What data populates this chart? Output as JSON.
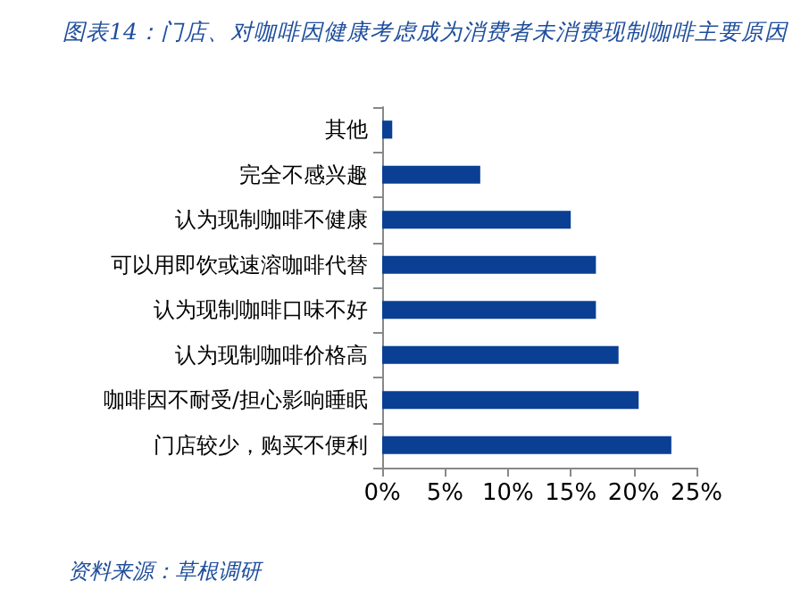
{
  "chart_data": {
    "type": "bar",
    "orientation": "horizontal",
    "title": "图表14：门店、对咖啡因健康考虑成为消费者未消费现制咖啡主要原因",
    "categories": [
      "其他",
      "完全不感兴趣",
      "认为现制咖啡不健康",
      "可以用即饮或速溶咖啡代替",
      "认为现制咖啡口味不好",
      "认为现制咖啡价格高",
      "咖啡因不耐受/担心影响睡眠",
      "门店较少，购买不便利"
    ],
    "values": [
      0.8,
      7.8,
      15.0,
      17.0,
      17.0,
      18.8,
      20.4,
      23.0
    ],
    "color": "#0a3f94",
    "xlim": [
      0,
      25
    ],
    "xticks": [
      {
        "value": 0,
        "label": "0%"
      },
      {
        "value": 5,
        "label": "5%"
      },
      {
        "value": 10,
        "label": "10%"
      },
      {
        "value": 15,
        "label": "15%"
      },
      {
        "value": 20,
        "label": "20%"
      },
      {
        "value": 25,
        "label": "25%"
      }
    ],
    "annotations": [
      "资料来源：草根调研"
    ],
    "grid": false
  }
}
